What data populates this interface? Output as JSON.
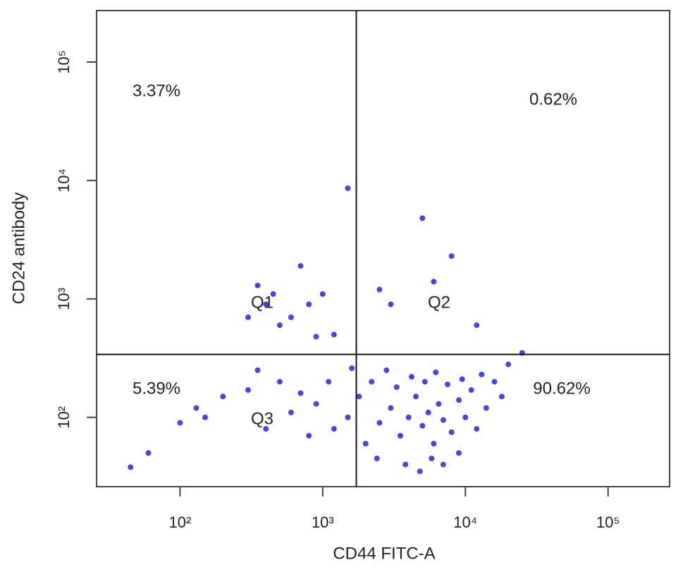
{
  "chart_data": {
    "type": "scatter",
    "xlabel": "CD44 FITC-A",
    "ylabel": "CD24 antibody",
    "xscale": "log",
    "yscale": "log",
    "xlim": [
      26,
      270000
    ],
    "ylim": [
      26,
      272000
    ],
    "xticks": [
      {
        "value": 100,
        "label": "10²"
      },
      {
        "value": 1000,
        "label": "10³"
      },
      {
        "value": 10000,
        "label": "10⁴"
      },
      {
        "value": 100000,
        "label": "10⁵"
      }
    ],
    "yticks": [
      {
        "value": 100,
        "label": "10²"
      },
      {
        "value": 1000,
        "label": "10³"
      },
      {
        "value": 10000,
        "label": "10⁴"
      },
      {
        "value": 100000,
        "label": "10⁵"
      }
    ],
    "gate_x": 1720,
    "gate_y": 340,
    "quadrant_labels": [
      "Q1",
      "Q2",
      "Q3",
      null
    ],
    "quadrant_values": [
      3.37,
      0.62,
      5.39,
      90.62
    ],
    "quadrant_value_labels": [
      "3.37%",
      "0.62%",
      "5.39%",
      "90.62%"
    ],
    "color": "#2626d6",
    "x": [
      2000,
      2500,
      3000,
      3500,
      4000,
      4500,
      5000,
      5500,
      6000,
      6500,
      7000,
      8000,
      9000,
      10000,
      12000,
      14000,
      2200,
      2800,
      3300,
      4200,
      5200,
      6200,
      7500,
      9500,
      11000,
      13000,
      3800,
      4800,
      5800,
      7000,
      2400,
      9000,
      1800,
      1500,
      1200,
      1100,
      900,
      800,
      700,
      600,
      1600,
      16000,
      18000,
      20000,
      350,
      400,
      600,
      800,
      1000,
      700,
      500,
      300,
      1200,
      900,
      450,
      1500,
      5000,
      8000,
      6000,
      3000,
      12000,
      25000,
      2500,
      300,
      200,
      150,
      100,
      60,
      45,
      400,
      500,
      350,
      130
    ],
    "y": [
      60,
      90,
      120,
      70,
      100,
      150,
      85,
      110,
      60,
      130,
      95,
      75,
      140,
      100,
      80,
      120,
      200,
      250,
      180,
      220,
      200,
      240,
      190,
      210,
      170,
      230,
      40,
      35,
      45,
      40,
      45,
      50,
      150,
      100,
      80,
      200,
      130,
      70,
      160,
      110,
      260,
      200,
      150,
      280,
      1300,
      900,
      700,
      900,
      1100,
      1900,
      600,
      700,
      500,
      480,
      1100,
      8600,
      4800,
      2300,
      1400,
      900,
      600,
      350,
      1200,
      170,
      150,
      100,
      90,
      50,
      38,
      80,
      200,
      250,
      120
    ]
  }
}
